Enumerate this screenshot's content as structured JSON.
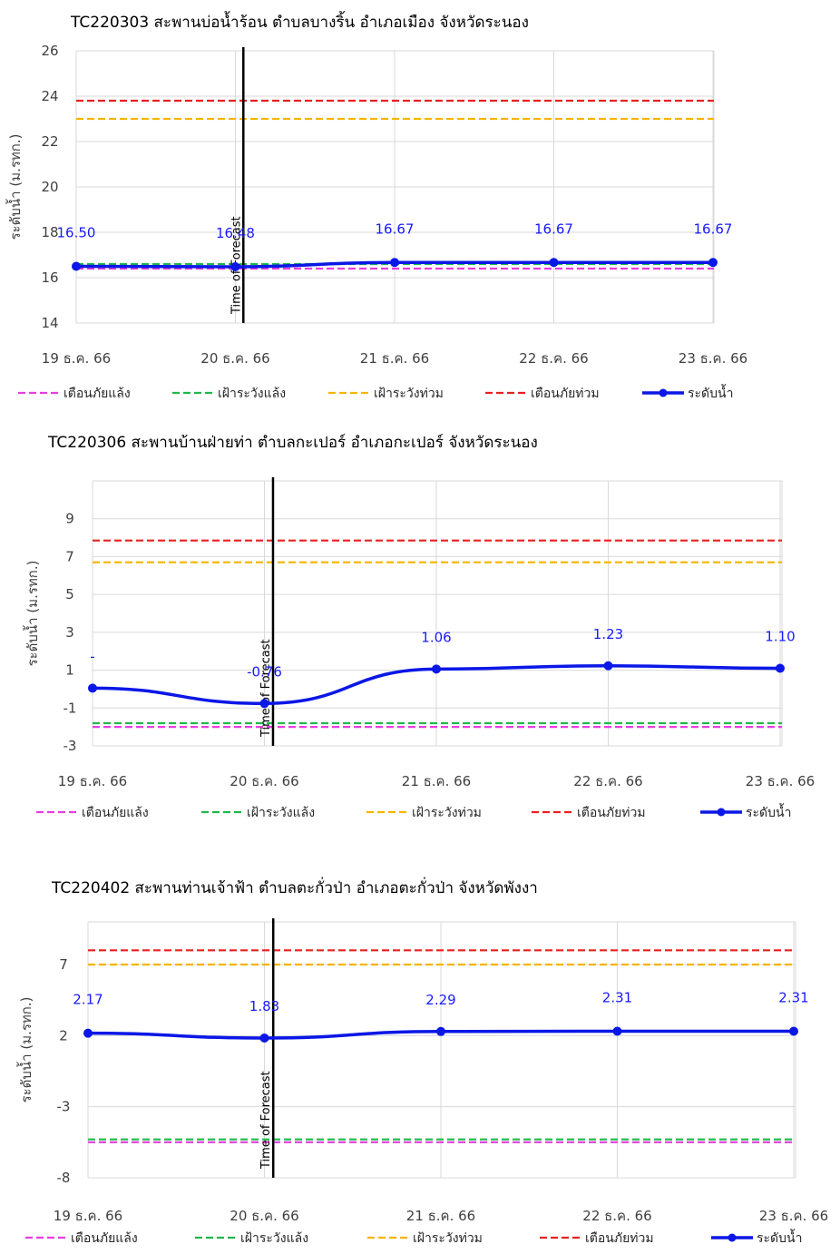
{
  "colors": {
    "drought_warning": "#e83ce0",
    "drought_watch": "#1fb84a",
    "flood_watch": "#f5b400",
    "flood_warning": "#e82020",
    "water_level": "#0a17e6",
    "forecast_line": "#000000"
  },
  "legend": [
    "เตือนภัยแล้ง",
    "เฝ้าระวังแล้ง",
    "เฝ้าระวังท่วม",
    "เตือนภัยท่วม",
    "ระดับน้ำ"
  ],
  "chart_data": [
    {
      "type": "line",
      "title": "TC220303 สะพานบ่อน้ำร้อน ตำบลบางริ้น อำเภอเมือง จังหวัดระนอง",
      "ylabel": "ระดับน้ำ (ม.รทก.)",
      "ylim": [
        14,
        26
      ],
      "yticks": [
        14,
        16,
        18,
        20,
        22,
        24,
        26
      ],
      "categories": [
        "19 ธ.ค. 66",
        "20 ธ.ค. 66",
        "21 ธ.ค. 66",
        "22 ธ.ค. 66",
        "23 ธ.ค. 66"
      ],
      "forecast_marker": {
        "label": "Time of Forecast",
        "x": 1.05
      },
      "series": [
        {
          "name": "เตือนภัยแล้ง",
          "type": "threshold",
          "value": 16.4
        },
        {
          "name": "เฝ้าระวังแล้ง",
          "type": "threshold",
          "value": 16.6
        },
        {
          "name": "เฝ้าระวังท่วม",
          "type": "threshold",
          "value": 23.0
        },
        {
          "name": "เตือนภัยท่วม",
          "type": "threshold",
          "value": 23.8
        },
        {
          "name": "ระดับน้ำ",
          "type": "line",
          "values": [
            16.5,
            16.48,
            16.67,
            16.67,
            16.67
          ],
          "labels": [
            "16.50",
            "16.48",
            "16.67",
            "16.67",
            "16.67"
          ]
        }
      ],
      "grid": true,
      "legend_position": "bottom"
    },
    {
      "type": "line",
      "title": "TC220306 สะพานบ้านฝ่ายท่า ตำบลกะเปอร์ อำเภอกะเปอร์ จังหวัดระนอง",
      "ylabel": "ระดับน้ำ (ม.รทก.)",
      "ylim": [
        -3,
        11
      ],
      "yticks": [
        -3,
        -1,
        1,
        3,
        5,
        7,
        9
      ],
      "categories": [
        "19 ธ.ค. 66",
        "20 ธ.ค. 66",
        "21 ธ.ค. 66",
        "22 ธ.ค. 66",
        "23 ธ.ค. 66"
      ],
      "forecast_marker": {
        "label": "Time of Forecast",
        "x": 1.05
      },
      "series": [
        {
          "name": "เตือนภัยแล้ง",
          "type": "threshold",
          "value": -2.0
        },
        {
          "name": "เฝ้าระวังแล้ง",
          "type": "threshold",
          "value": -1.8
        },
        {
          "name": "เฝ้าระวังท่วม",
          "type": "threshold",
          "value": 6.7
        },
        {
          "name": "เตือนภัยท่วม",
          "type": "threshold",
          "value": 7.85
        },
        {
          "name": "ระดับน้ำ",
          "type": "line",
          "values": [
            0.05,
            -0.76,
            1.06,
            1.23,
            1.1
          ],
          "labels": [
            "-",
            "-0.76",
            "1.06",
            "1.23",
            "1.10"
          ]
        }
      ],
      "grid": true,
      "legend_position": "bottom"
    },
    {
      "type": "line",
      "title": "TC220402 สะพานท่านเจ้าฟ้า ตำบลตะกั่วป่า อำเภอตะกั่วป่า จังหวัดพังงา",
      "ylabel": "ระดับน้ำ (ม.รทก.)",
      "ylim": [
        -8,
        10
      ],
      "yticks": [
        -8,
        -3,
        2,
        7
      ],
      "categories": [
        "19 ธ.ค. 66",
        "20 ธ.ค. 66",
        "21 ธ.ค. 66",
        "22 ธ.ค. 66",
        "23 ธ.ค. 66"
      ],
      "forecast_marker": {
        "label": "Time of Forecast",
        "x": 1.05
      },
      "series": [
        {
          "name": "เตือนภัยแล้ง",
          "type": "threshold",
          "value": -5.5
        },
        {
          "name": "เฝ้าระวังแล้ง",
          "type": "threshold",
          "value": -5.3
        },
        {
          "name": "เฝ้าระวังท่วม",
          "type": "threshold",
          "value": 7.0
        },
        {
          "name": "เตือนภัยท่วม",
          "type": "threshold",
          "value": 8.0
        },
        {
          "name": "ระดับน้ำ",
          "type": "line",
          "values": [
            2.17,
            1.83,
            2.29,
            2.31,
            2.31
          ],
          "labels": [
            "2.17",
            "1.83",
            "2.29",
            "2.31",
            "2.31"
          ]
        }
      ],
      "grid": true,
      "legend_position": "bottom"
    }
  ]
}
